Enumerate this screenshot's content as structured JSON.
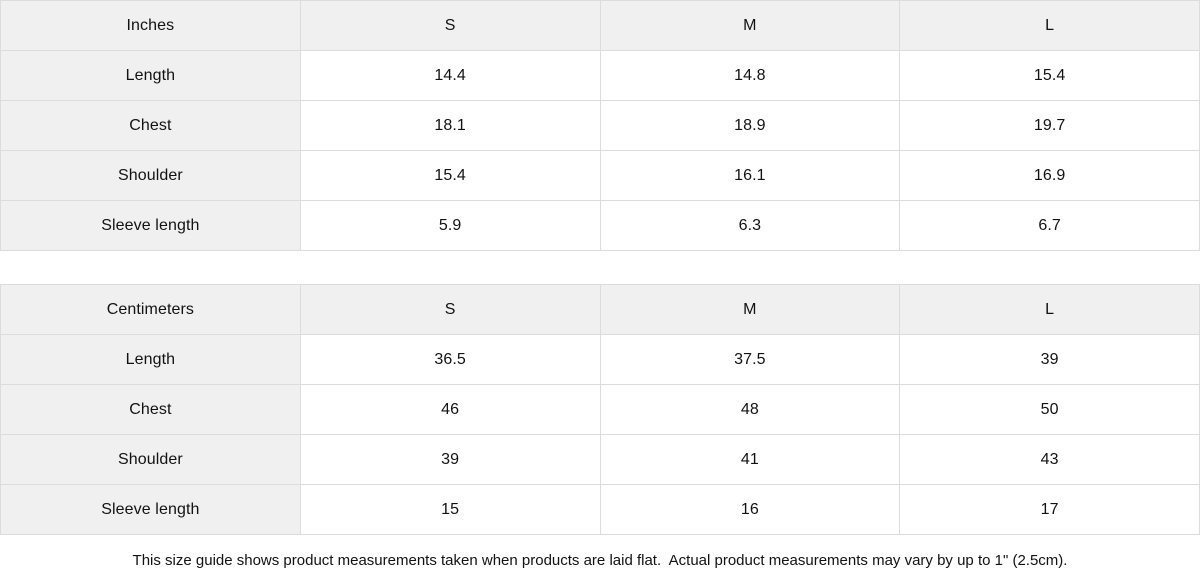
{
  "colors": {
    "header_bg": "#f0f0f0",
    "cell_bg": "#ffffff",
    "border": "#dcdcdc",
    "text": "#121212"
  },
  "tables": [
    {
      "unit_label": "Inches",
      "size_headers": [
        "S",
        "M",
        "L"
      ],
      "rows": [
        {
          "label": "Length",
          "values": [
            "14.4",
            "14.8",
            "15.4"
          ]
        },
        {
          "label": "Chest",
          "values": [
            "18.1",
            "18.9",
            "19.7"
          ]
        },
        {
          "label": "Shoulder",
          "values": [
            "15.4",
            "16.1",
            "16.9"
          ]
        },
        {
          "label": "Sleeve length",
          "values": [
            "5.9",
            "6.3",
            "6.7"
          ]
        }
      ]
    },
    {
      "unit_label": "Centimeters",
      "size_headers": [
        "S",
        "M",
        "L"
      ],
      "rows": [
        {
          "label": "Length",
          "values": [
            "36.5",
            "37.5",
            "39"
          ]
        },
        {
          "label": "Chest",
          "values": [
            "46",
            "48",
            "50"
          ]
        },
        {
          "label": "Shoulder",
          "values": [
            "39",
            "41",
            "43"
          ]
        },
        {
          "label": "Sleeve length",
          "values": [
            "15",
            "16",
            "17"
          ]
        }
      ]
    }
  ],
  "footer": {
    "note": "This size guide shows product measurements taken when products are laid flat.  Actual product measurements may vary by up to 1\" (2.5cm)."
  }
}
